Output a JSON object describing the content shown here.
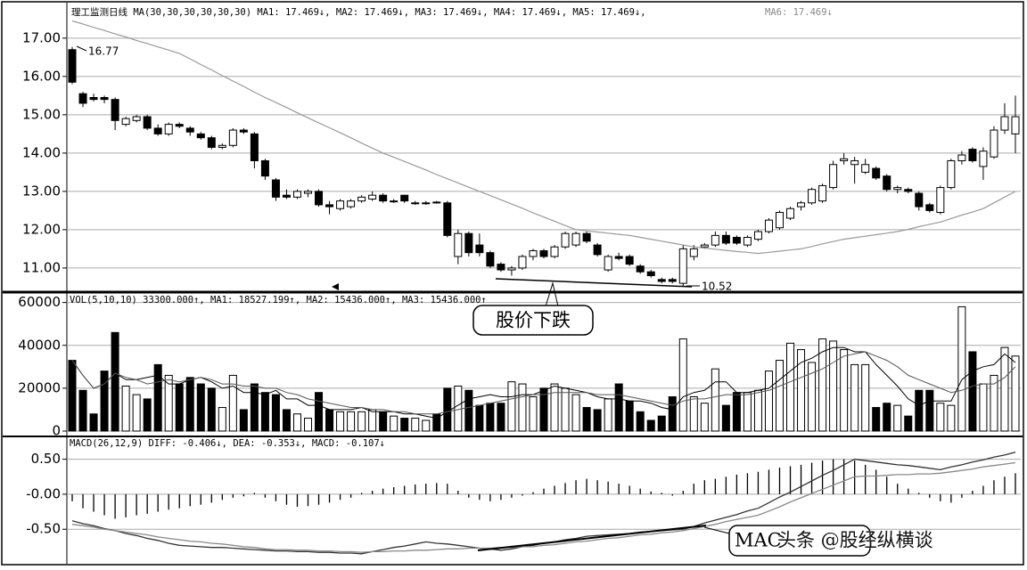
{
  "chart_data": [
    {
      "type": "candlestick",
      "header": [
        "理工监测日线 MA(30,30,30,30,30,30) MA1: 17.469↓, MA2: 17.469↓, MA3: 17.469↓, MA4: 17.469↓, MA5: 17.469↓,",
        "MA6: 17.469↓"
      ],
      "annotations": [
        "16.77",
        "10.52",
        "股价下跌"
      ],
      "ylim": [
        10.37,
        17.81
      ],
      "yticks": [
        {
          "value": 17,
          "label": "17.00"
        },
        {
          "value": 16,
          "label": "16.00"
        },
        {
          "value": 15,
          "label": "15.00"
        },
        {
          "value": 14,
          "label": "14.00"
        },
        {
          "value": 13,
          "label": "13.00"
        },
        {
          "value": 12,
          "label": "12.00"
        },
        {
          "value": 11,
          "label": "11.00"
        }
      ],
      "grid": true,
      "up_color": "#ffffff",
      "down_color": "#000000",
      "candles": {
        "open": [
          16.7,
          15.55,
          15.45,
          15.45,
          15.4,
          14.75,
          14.85,
          14.95,
          14.65,
          14.5,
          14.75,
          14.65,
          14.5,
          14.4,
          14.15,
          14.2,
          14.6,
          14.5,
          13.8,
          13.3,
          12.9,
          12.85,
          12.95,
          13.0,
          12.65,
          12.55,
          12.6,
          12.75,
          12.8,
          12.9,
          12.75,
          12.9,
          12.7,
          12.7,
          12.72,
          12.7,
          11.3,
          11.9,
          11.6,
          11.4,
          11.1,
          10.95,
          11.0,
          11.3,
          11.45,
          11.3,
          11.55,
          11.6,
          11.9,
          11.6,
          10.95,
          11.3,
          11.3,
          11.05,
          10.9,
          10.7,
          10.7,
          10.6,
          11.3,
          11.55,
          11.6,
          11.85,
          11.8,
          11.6,
          11.75,
          11.95,
          12.05,
          12.3,
          12.6,
          12.7,
          12.75,
          13.1,
          13.8,
          13.7,
          13.5,
          13.6,
          13.4,
          13.05,
          13.05,
          12.95,
          12.65,
          12.45,
          13.1,
          13.8,
          14.1,
          13.65,
          13.9,
          14.6,
          14.5
        ],
        "high": [
          16.77,
          15.6,
          15.55,
          15.5,
          15.45,
          14.95,
          15.0,
          15.0,
          14.75,
          14.8,
          14.8,
          14.7,
          14.55,
          14.45,
          14.25,
          14.65,
          14.65,
          14.55,
          13.85,
          13.35,
          13.05,
          13.05,
          13.05,
          13.05,
          12.75,
          12.8,
          12.8,
          12.9,
          13.0,
          12.95,
          12.8,
          12.9,
          12.75,
          12.75,
          12.75,
          12.75,
          12.0,
          11.95,
          11.9,
          11.45,
          11.15,
          11.05,
          11.35,
          11.5,
          11.5,
          11.6,
          11.95,
          11.95,
          11.95,
          11.65,
          11.35,
          11.4,
          11.35,
          11.1,
          10.95,
          10.75,
          10.75,
          11.6,
          11.6,
          11.65,
          11.95,
          11.95,
          11.85,
          11.85,
          12.0,
          12.3,
          12.5,
          12.6,
          12.75,
          13.1,
          13.2,
          13.8,
          14.0,
          13.9,
          13.85,
          13.65,
          13.45,
          13.15,
          13.1,
          13.0,
          12.7,
          13.15,
          13.85,
          14.05,
          14.15,
          14.15,
          14.7,
          15.3,
          15.5
        ],
        "low": [
          15.8,
          15.2,
          15.35,
          15.3,
          14.6,
          14.7,
          14.8,
          14.6,
          14.45,
          14.45,
          14.65,
          14.45,
          14.35,
          14.1,
          14.1,
          14.15,
          14.5,
          13.6,
          13.3,
          12.75,
          12.8,
          12.8,
          12.85,
          12.6,
          12.4,
          12.5,
          12.55,
          12.7,
          12.75,
          12.7,
          12.7,
          12.7,
          12.65,
          12.65,
          12.68,
          11.8,
          11.1,
          11.3,
          11.3,
          11.0,
          10.9,
          10.8,
          10.95,
          11.2,
          11.25,
          11.25,
          11.5,
          11.55,
          11.65,
          11.3,
          10.9,
          11.2,
          11.05,
          10.85,
          10.75,
          10.6,
          10.6,
          10.52,
          11.2,
          11.5,
          11.55,
          11.6,
          11.6,
          11.55,
          11.7,
          11.9,
          12.0,
          12.25,
          12.5,
          12.65,
          12.7,
          13.05,
          13.7,
          13.2,
          13.45,
          13.3,
          13.0,
          12.95,
          12.95,
          12.5,
          12.45,
          12.4,
          13.05,
          13.7,
          13.75,
          13.3,
          13.85,
          14.5,
          14.0
        ],
        "close": [
          15.85,
          15.3,
          15.4,
          15.4,
          14.85,
          14.9,
          14.95,
          14.65,
          14.5,
          14.75,
          14.7,
          14.55,
          14.4,
          14.15,
          14.2,
          14.6,
          14.55,
          13.8,
          13.4,
          12.85,
          12.85,
          13.0,
          13.0,
          12.65,
          12.6,
          12.75,
          12.75,
          12.85,
          12.9,
          12.75,
          12.75,
          12.75,
          12.7,
          12.7,
          12.7,
          11.85,
          11.9,
          11.4,
          11.4,
          11.05,
          10.95,
          11.0,
          11.3,
          11.45,
          11.3,
          11.55,
          11.9,
          11.9,
          11.7,
          11.35,
          11.3,
          11.25,
          11.1,
          10.9,
          10.8,
          10.65,
          10.65,
          11.5,
          11.5,
          11.6,
          11.85,
          11.65,
          11.65,
          11.8,
          11.95,
          12.25,
          12.45,
          12.55,
          12.7,
          13.05,
          13.15,
          13.7,
          13.85,
          13.8,
          13.7,
          13.35,
          13.05,
          13.1,
          13.0,
          12.6,
          12.5,
          13.1,
          13.8,
          13.95,
          13.8,
          14.05,
          14.6,
          14.95,
          14.95
        ]
      },
      "ma": {
        "color": "#999999",
        "values": [
          17.45,
          17.37,
          17.28,
          17.2,
          17.11,
          17.03,
          16.94,
          16.86,
          16.77,
          16.69,
          16.6,
          16.46,
          16.31,
          16.17,
          16.02,
          15.88,
          15.74,
          15.59,
          15.45,
          15.32,
          15.19,
          15.05,
          14.92,
          14.79,
          14.66,
          14.53,
          14.4,
          14.26,
          14.13,
          14.0,
          13.89,
          13.78,
          13.67,
          13.56,
          13.44,
          13.33,
          13.22,
          13.11,
          13.0,
          12.89,
          12.78,
          12.67,
          12.56,
          12.44,
          12.33,
          12.22,
          12.11,
          12.0,
          11.97,
          11.94,
          11.91,
          11.88,
          11.85,
          11.8,
          11.75,
          11.7,
          11.65,
          11.6,
          11.55,
          11.52,
          11.49,
          11.46,
          11.43,
          11.41,
          11.38,
          11.41,
          11.44,
          11.47,
          11.5,
          11.56,
          11.63,
          11.69,
          11.75,
          11.79,
          11.83,
          11.87,
          11.91,
          11.95,
          12.01,
          12.08,
          12.14,
          12.2,
          12.29,
          12.38,
          12.46,
          12.55,
          12.7,
          12.85,
          13.0
        ]
      }
    },
    {
      "type": "volume",
      "header": [
        "VOL(5,10,10) 33300.000↑, MA1: 18527.199↑, MA2: 15436.000↑, MA3: 15436.000↑"
      ],
      "ylim": [
        0,
        64000
      ],
      "yticks": [
        60000,
        40000,
        20000,
        0
      ],
      "grid": true,
      "values": [
        33000,
        19000,
        8000,
        28000,
        46000,
        21000,
        17000,
        15000,
        31000,
        26000,
        22000,
        25000,
        22000,
        20000,
        11000,
        26000,
        10000,
        22000,
        18000,
        17000,
        10000,
        8000,
        6000,
        18000,
        10000,
        9000,
        9000,
        9000,
        10000,
        9000,
        7000,
        6000,
        6000,
        5000,
        8000,
        20000,
        21000,
        19000,
        12000,
        13000,
        13000,
        23000,
        22000,
        16000,
        20000,
        22000,
        20000,
        17000,
        11000,
        10000,
        15000,
        22000,
        14000,
        9000,
        5000,
        7000,
        16000,
        43000,
        16000,
        13000,
        29000,
        12000,
        18000,
        18000,
        19000,
        28000,
        33000,
        41000,
        38000,
        32000,
        43000,
        42000,
        38000,
        31000,
        31000,
        11000,
        13000,
        12000,
        7000,
        19000,
        19000,
        13000,
        12000,
        58000,
        37000,
        22000,
        26000,
        39000,
        35000
      ],
      "lines": [
        {
          "color": "#000000",
          "values": [
            33000,
            26000,
            20000,
            22000,
            27000,
            24000,
            24000,
            25000,
            26000,
            22000,
            22000,
            24000,
            25000,
            23000,
            20000,
            21000,
            18000,
            18000,
            17000,
            19000,
            15000,
            15000,
            12000,
            12000,
            10000,
            10000,
            10000,
            11000,
            9000,
            9000,
            9000,
            8000,
            8000,
            7000,
            6000,
            9000,
            12000,
            15000,
            16000,
            17000,
            16000,
            16000,
            17000,
            17000,
            19000,
            21000,
            20000,
            19000,
            18000,
            16000,
            15000,
            15000,
            14000,
            14000,
            13000,
            11000,
            10000,
            16000,
            18000,
            19000,
            23000,
            23000,
            18000,
            18000,
            19000,
            20000,
            24000,
            28000,
            32000,
            34000,
            37000,
            39000,
            39000,
            37000,
            37000,
            31000,
            26000,
            21000,
            15000,
            12000,
            14000,
            14000,
            14000,
            24000,
            28000,
            30000,
            31000,
            36000,
            32000
          ]
        },
        {
          "color": "#555555",
          "values": [
            33000,
            26000,
            20000,
            22000,
            27000,
            25000,
            24000,
            22000,
            23000,
            24000,
            23000,
            24000,
            25000,
            24000,
            22000,
            22000,
            21000,
            21000,
            20000,
            20000,
            18000,
            17000,
            15000,
            14000,
            13000,
            12000,
            11000,
            11000,
            10000,
            10000,
            9000,
            9000,
            8000,
            8000,
            8000,
            9000,
            10000,
            11000,
            12000,
            13000,
            14000,
            15000,
            16000,
            17000,
            17000,
            18000,
            18000,
            18000,
            18000,
            17000,
            17000,
            17000,
            16000,
            15000,
            14000,
            13000,
            12000,
            14000,
            15000,
            15000,
            16000,
            17000,
            17000,
            17000,
            18000,
            19000,
            21000,
            23000,
            25000,
            27000,
            29000,
            32000,
            35000,
            36000,
            37000,
            35000,
            33000,
            30000,
            26000,
            24000,
            22000,
            20000,
            18000,
            19000,
            21000,
            22000,
            22000,
            25000,
            30000
          ]
        }
      ]
    },
    {
      "type": "macd",
      "header": [
        "MACD(26,12,9) DIFF: -0.406↓, DEA: -0.353↓, MACD: -0.107↓"
      ],
      "annotations": [
        "MAC",
        "头条 @股经纵横谈"
      ],
      "ylim": [
        -0.98,
        0.8
      ],
      "yticks": [
        {
          "value": 0.5,
          "label": "0.50"
        },
        {
          "value": 0,
          "label": "-0.00"
        },
        {
          "value": -0.5,
          "label": "-0.50"
        }
      ],
      "grid": true,
      "values": [
        -0.1,
        -0.2,
        -0.25,
        -0.3,
        -0.35,
        -0.33,
        -0.3,
        -0.28,
        -0.25,
        -0.22,
        -0.2,
        -0.17,
        -0.15,
        -0.12,
        -0.08,
        -0.05,
        -0.03,
        0.02,
        -0.05,
        -0.1,
        -0.15,
        -0.18,
        -0.17,
        -0.15,
        -0.12,
        -0.08,
        -0.05,
        0.02,
        0.05,
        0.08,
        0.1,
        0.12,
        0.14,
        0.15,
        0.16,
        0.15,
        0.05,
        -0.05,
        -0.08,
        -0.1,
        -0.08,
        -0.05,
        -0.02,
        0.03,
        0.08,
        0.12,
        0.16,
        0.2,
        0.22,
        0.2,
        0.18,
        0.15,
        0.12,
        0.08,
        0.04,
        0.02,
        -0.02,
        0.05,
        0.15,
        0.2,
        0.22,
        0.25,
        0.28,
        0.3,
        0.32,
        0.35,
        0.38,
        0.4,
        0.42,
        0.45,
        0.48,
        0.5,
        0.5,
        0.48,
        0.42,
        0.35,
        0.25,
        0.15,
        0.08,
        0.02,
        -0.05,
        -0.1,
        -0.12,
        -0.05,
        0.05,
        0.12,
        0.2,
        0.25,
        0.3
      ],
      "diff": {
        "color": "#333333",
        "values": [
          -0.38,
          -0.42,
          -0.45,
          -0.49,
          -0.52,
          -0.56,
          -0.59,
          -0.63,
          -0.66,
          -0.7,
          -0.73,
          -0.74,
          -0.75,
          -0.76,
          -0.76,
          -0.77,
          -0.78,
          -0.79,
          -0.8,
          -0.81,
          -0.81,
          -0.82,
          -0.82,
          -0.83,
          -0.83,
          -0.84,
          -0.84,
          -0.85,
          -0.82,
          -0.79,
          -0.76,
          -0.74,
          -0.71,
          -0.68,
          -0.7,
          -0.71,
          -0.73,
          -0.75,
          -0.77,
          -0.78,
          -0.8,
          -0.78,
          -0.75,
          -0.73,
          -0.7,
          -0.68,
          -0.65,
          -0.63,
          -0.6,
          -0.59,
          -0.58,
          -0.57,
          -0.56,
          -0.54,
          -0.53,
          -0.52,
          -0.51,
          -0.5,
          -0.46,
          -0.41,
          -0.37,
          -0.33,
          -0.29,
          -0.24,
          -0.2,
          -0.12,
          -0.04,
          0.03,
          0.11,
          0.19,
          0.27,
          0.34,
          0.42,
          0.5,
          0.48,
          0.46,
          0.44,
          0.42,
          0.41,
          0.39,
          0.37,
          0.35,
          0.39,
          0.42,
          0.46,
          0.49,
          0.53,
          0.56,
          0.6
        ]
      },
      "dea": {
        "color": "#888888",
        "values": [
          -0.43,
          -0.45,
          -0.47,
          -0.5,
          -0.52,
          -0.54,
          -0.56,
          -0.58,
          -0.61,
          -0.63,
          -0.65,
          -0.67,
          -0.68,
          -0.7,
          -0.71,
          -0.73,
          -0.75,
          -0.76,
          -0.78,
          -0.79,
          -0.79,
          -0.8,
          -0.8,
          -0.81,
          -0.81,
          -0.82,
          -0.82,
          -0.83,
          -0.82,
          -0.82,
          -0.81,
          -0.81,
          -0.8,
          -0.8,
          -0.79,
          -0.78,
          -0.78,
          -0.77,
          -0.77,
          -0.77,
          -0.76,
          -0.76,
          -0.75,
          -0.75,
          -0.73,
          -0.72,
          -0.7,
          -0.68,
          -0.67,
          -0.65,
          -0.63,
          -0.62,
          -0.6,
          -0.58,
          -0.57,
          -0.55,
          -0.54,
          -0.52,
          -0.49,
          -0.46,
          -0.43,
          -0.39,
          -0.36,
          -0.33,
          -0.3,
          -0.24,
          -0.18,
          -0.11,
          -0.05,
          0.01,
          0.07,
          0.13,
          0.19,
          0.25,
          0.26,
          0.26,
          0.27,
          0.28,
          0.28,
          0.29,
          0.29,
          0.3,
          0.32,
          0.34,
          0.36,
          0.39,
          0.41,
          0.43,
          0.45
        ]
      }
    }
  ]
}
